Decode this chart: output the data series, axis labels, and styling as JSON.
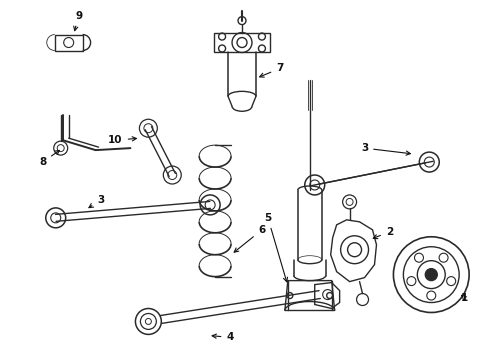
{
  "bg_color": "#ffffff",
  "line_color": "#2a2a2a",
  "fig_width": 4.9,
  "fig_height": 3.6,
  "dpi": 100,
  "lw": 1.0
}
